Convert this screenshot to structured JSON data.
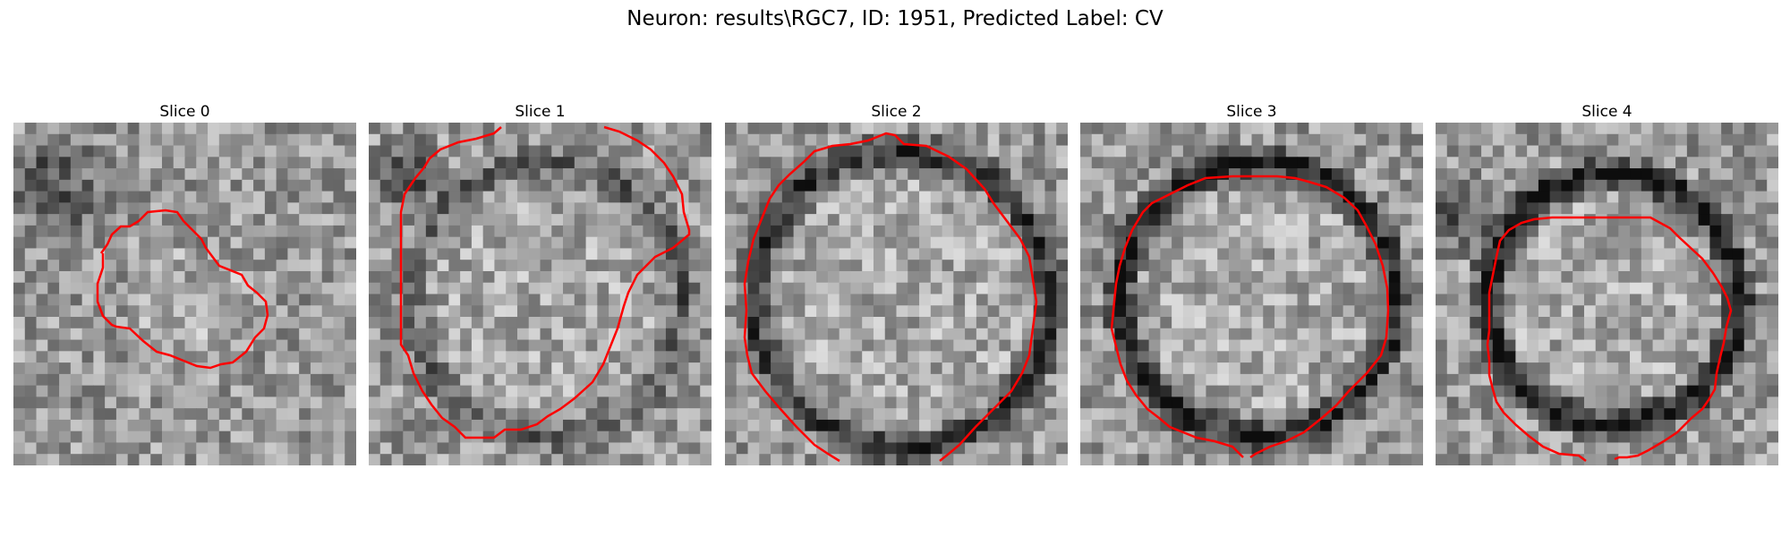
{
  "figure": {
    "title": "Neuron: results\\RGC7, ID: 1951, Predicted Label: CV"
  },
  "panels": [
    {
      "title": "Slice 0"
    },
    {
      "title": "Slice 1"
    },
    {
      "title": "Slice 2"
    },
    {
      "title": "Slice 3"
    },
    {
      "title": "Slice 4"
    }
  ],
  "colors": {
    "contour": "#ff0000"
  }
}
